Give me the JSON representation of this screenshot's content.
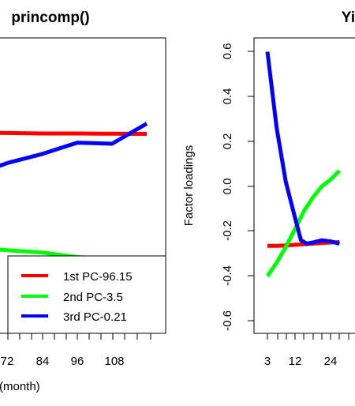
{
  "chart_data": [
    {
      "type": "line",
      "title": "princomp()",
      "xlabel": "(month)",
      "ylabel": "",
      "x_ticks": [
        "72",
        "84",
        "96",
        "108"
      ],
      "legend_position": "bottom-right",
      "series": [
        {
          "name": "1st PC-96.15",
          "color": "#ff0000",
          "x": [
            60,
            72,
            84,
            96,
            108,
            120
          ],
          "y": [
            0.24,
            0.238,
            0.236,
            0.236,
            0.235,
            0.234
          ]
        },
        {
          "name": "2nd PC-3.5",
          "color": "#00ff00",
          "x": [
            60,
            72,
            84,
            96,
            108,
            120
          ],
          "y": [
            -0.27,
            -0.285,
            -0.295,
            -0.315,
            -0.322,
            -0.322
          ]
        },
        {
          "name": "3rd PC-0.21",
          "color": "#0000ff",
          "x": [
            60,
            72,
            84,
            96,
            108,
            120
          ],
          "y": [
            0.05,
            0.105,
            0.145,
            0.195,
            0.19,
            0.28
          ]
        }
      ]
    },
    {
      "type": "line",
      "title": "Yi",
      "xlabel": "",
      "ylabel": "Factor loadings",
      "ylim": [
        -0.65,
        0.65
      ],
      "y_ticks": [
        "-0.6",
        "-0.4",
        "-0.2",
        "0.0",
        "0.2",
        "0.4",
        "0.6"
      ],
      "x_ticks": [
        "3",
        "12",
        "24"
      ],
      "series": [
        {
          "name": "",
          "color": "#ff0000",
          "x": [
            3,
            6,
            9,
            12,
            15,
            18,
            21,
            24,
            27
          ],
          "y": [
            -0.265,
            -0.265,
            -0.263,
            -0.26,
            -0.258,
            -0.255,
            -0.252,
            -0.25,
            -0.248
          ]
        },
        {
          "name": "",
          "color": "#00ff00",
          "x": [
            3,
            6,
            9,
            12,
            15,
            18,
            21,
            24,
            27
          ],
          "y": [
            -0.4,
            -0.34,
            -0.27,
            -0.19,
            -0.11,
            -0.05,
            0.0,
            0.03,
            0.07
          ]
        },
        {
          "name": "",
          "color": "#0000ff",
          "x": [
            3,
            6,
            9,
            12,
            14,
            16,
            18,
            21,
            24,
            27
          ],
          "y": [
            0.6,
            0.26,
            0.02,
            -0.14,
            -0.24,
            -0.255,
            -0.25,
            -0.24,
            -0.245,
            -0.255
          ]
        }
      ]
    }
  ]
}
